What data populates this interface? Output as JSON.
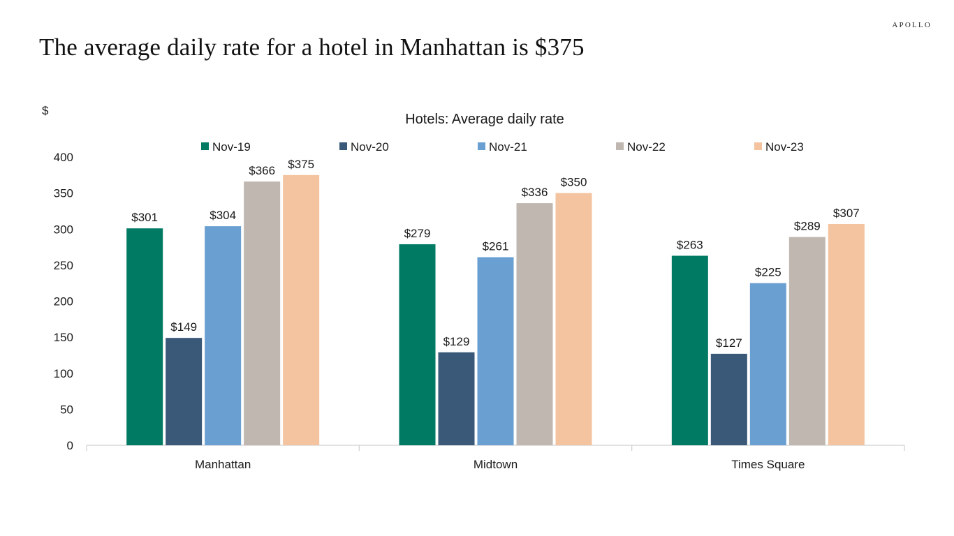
{
  "brand": "APOLLO",
  "page_title": "The average daily rate for a hotel in Manhattan is $375",
  "colors": {
    "Nov-19": "#007a63",
    "Nov-20": "#3a5878",
    "Nov-21": "#6a9fd2",
    "Nov-22": "#bfb7b0",
    "Nov-23": "#f4c39f",
    "axis": "#d0d0d0"
  },
  "chart_data": {
    "type": "bar",
    "title": "Hotels: Average daily rate",
    "ylabel": "$",
    "xlabel": "",
    "ylim": [
      0,
      400
    ],
    "yticks": [
      0,
      50,
      100,
      150,
      200,
      250,
      300,
      350,
      400
    ],
    "categories": [
      "Manhattan",
      "Midtown",
      "Times Square"
    ],
    "series": [
      {
        "name": "Nov-19",
        "values": [
          301,
          279,
          263
        ],
        "labels": [
          "$301",
          "$279",
          "$263"
        ]
      },
      {
        "name": "Nov-20",
        "values": [
          149,
          129,
          127
        ],
        "labels": [
          "$149",
          "$129",
          "$127"
        ]
      },
      {
        "name": "Nov-21",
        "values": [
          304,
          261,
          225
        ],
        "labels": [
          "$304",
          "$261",
          "$225"
        ]
      },
      {
        "name": "Nov-22",
        "values": [
          366,
          336,
          289
        ],
        "labels": [
          "$366",
          "$336",
          "$289"
        ]
      },
      {
        "name": "Nov-23",
        "values": [
          375,
          350,
          307
        ],
        "labels": [
          "$375",
          "$350",
          "$307"
        ]
      }
    ],
    "grid": false,
    "legend_position": "top"
  }
}
